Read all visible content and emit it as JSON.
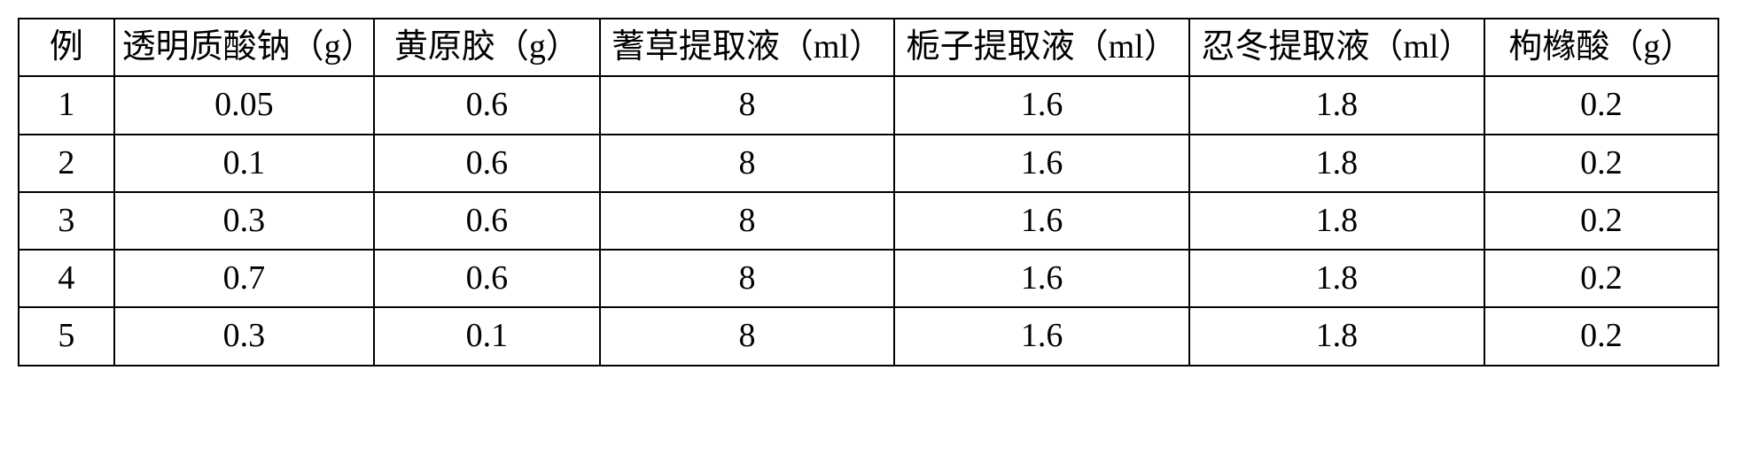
{
  "table": {
    "columns": [
      "例",
      "透明质酸钠（g）",
      "黄原胶（g）",
      "蓍草提取液（ml）",
      "栀子提取液（ml）",
      "忍冬提取液（ml）",
      "枸橼酸（g）"
    ],
    "rows": [
      [
        "1",
        "0.05",
        "0.6",
        "8",
        "1.6",
        "1.8",
        "0.2"
      ],
      [
        "2",
        "0.1",
        "0.6",
        "8",
        "1.6",
        "1.8",
        "0.2"
      ],
      [
        "3",
        "0.3",
        "0.6",
        "8",
        "1.6",
        "1.8",
        "0.2"
      ],
      [
        "4",
        "0.7",
        "0.6",
        "8",
        "1.6",
        "1.8",
        "0.2"
      ],
      [
        "5",
        "0.3",
        "0.1",
        "8",
        "1.6",
        "1.8",
        "0.2"
      ]
    ],
    "column_widths_pct": [
      5.5,
      15,
      13,
      17,
      17,
      17,
      13.5
    ],
    "border_color": "#000000",
    "background_color": "#ffffff",
    "text_color": "#000000",
    "font_size_pt": 28,
    "font_family": "SimSun"
  }
}
